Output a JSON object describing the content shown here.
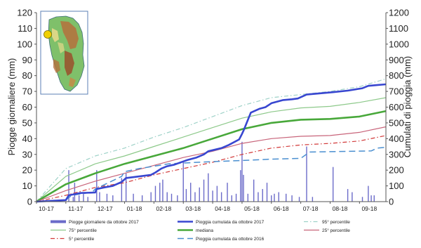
{
  "chart_data": {
    "type": "line",
    "ylabel_left": "Piogge giornaliere (mm)",
    "ylabel_right": "Cumulati di pioggia (mm)",
    "ylim_left": [
      0,
      120
    ],
    "ylim_right": [
      0,
      1200
    ],
    "y_ticks_left": [
      "0",
      "10",
      "20",
      "30",
      "40",
      "50",
      "60",
      "70",
      "80",
      "90",
      "100",
      "110",
      "120"
    ],
    "y_ticks_right": [
      "0",
      "100",
      "200",
      "300",
      "400",
      "500",
      "600",
      "700",
      "800",
      "900",
      "1000",
      "1100",
      "1200"
    ],
    "x_ticks": [
      "10-17",
      "11-17",
      "12-17",
      "01-18",
      "02-18",
      "03-18",
      "04-18",
      "05-18",
      "06-18",
      "07-18",
      "08-18",
      "09-18"
    ],
    "x_months": [
      0,
      1,
      2,
      3,
      4,
      5,
      6,
      7,
      8,
      9,
      10,
      11
    ],
    "xlim": [
      0,
      11.9
    ],
    "grid": false,
    "legend_position": "bottom",
    "daily_bars": {
      "name": "Piogge giornaliere da ottobre 2017",
      "color": "#6b6bc9",
      "axis": "left",
      "points": [
        [
          1.1,
          20
        ],
        [
          1.25,
          3
        ],
        [
          1.3,
          12
        ],
        [
          1.45,
          4
        ],
        [
          1.6,
          5
        ],
        [
          1.75,
          3
        ],
        [
          2.05,
          20
        ],
        [
          2.15,
          6
        ],
        [
          2.4,
          5
        ],
        [
          2.6,
          4
        ],
        [
          2.9,
          15
        ],
        [
          3.05,
          18
        ],
        [
          3.3,
          5
        ],
        [
          3.6,
          4
        ],
        [
          3.9,
          6
        ],
        [
          4.05,
          10
        ],
        [
          4.2,
          12
        ],
        [
          4.3,
          14
        ],
        [
          4.45,
          6
        ],
        [
          4.6,
          5
        ],
        [
          4.8,
          4
        ],
        [
          5.0,
          25
        ],
        [
          5.1,
          8
        ],
        [
          5.25,
          12
        ],
        [
          5.4,
          6
        ],
        [
          5.55,
          9
        ],
        [
          5.7,
          14
        ],
        [
          5.85,
          18
        ],
        [
          6.0,
          7
        ],
        [
          6.15,
          10
        ],
        [
          6.3,
          6
        ],
        [
          6.5,
          12
        ],
        [
          6.65,
          4
        ],
        [
          6.8,
          5
        ],
        [
          6.95,
          20
        ],
        [
          7.0,
          38
        ],
        [
          7.05,
          17
        ],
        [
          7.2,
          5
        ],
        [
          7.4,
          14
        ],
        [
          7.55,
          6
        ],
        [
          7.7,
          8
        ],
        [
          7.85,
          12
        ],
        [
          8.0,
          4
        ],
        [
          8.1,
          5
        ],
        [
          8.25,
          6
        ],
        [
          8.5,
          5
        ],
        [
          8.7,
          4
        ],
        [
          8.95,
          3
        ],
        [
          9.2,
          35
        ],
        [
          9.4,
          3
        ],
        [
          10.1,
          22
        ],
        [
          10.6,
          8
        ],
        [
          10.75,
          6
        ],
        [
          11.1,
          3
        ],
        [
          11.3,
          10
        ],
        [
          11.4,
          4
        ],
        [
          11.5,
          4
        ]
      ]
    },
    "series": [
      {
        "name": "Pioggia cumulata da ottobre 2017",
        "color": "#3847d0",
        "width": 2.6,
        "dash": "",
        "axis": "right",
        "points": [
          [
            0,
            0
          ],
          [
            1.0,
            10
          ],
          [
            1.1,
            40
          ],
          [
            1.5,
            55
          ],
          [
            2.0,
            58
          ],
          [
            2.05,
            80
          ],
          [
            2.3,
            90
          ],
          [
            2.6,
            100
          ],
          [
            2.9,
            125
          ],
          [
            3.05,
            150
          ],
          [
            3.5,
            160
          ],
          [
            3.9,
            170
          ],
          [
            4.05,
            185
          ],
          [
            4.25,
            210
          ],
          [
            4.45,
            225
          ],
          [
            4.7,
            235
          ],
          [
            5.0,
            255
          ],
          [
            5.15,
            265
          ],
          [
            5.45,
            280
          ],
          [
            5.7,
            300
          ],
          [
            5.85,
            320
          ],
          [
            6.3,
            340
          ],
          [
            6.55,
            360
          ],
          [
            6.9,
            395
          ],
          [
            7.0,
            430
          ],
          [
            7.05,
            450
          ],
          [
            7.3,
            565
          ],
          [
            7.6,
            590
          ],
          [
            7.8,
            600
          ],
          [
            8.0,
            625
          ],
          [
            8.4,
            645
          ],
          [
            8.7,
            650
          ],
          [
            8.9,
            655
          ],
          [
            9.2,
            680
          ],
          [
            9.5,
            685
          ],
          [
            10.1,
            695
          ],
          [
            10.6,
            705
          ],
          [
            11.1,
            720
          ],
          [
            11.3,
            735
          ],
          [
            11.6,
            740
          ],
          [
            11.9,
            745
          ]
        ]
      },
      {
        "name": "95° percentile",
        "color": "#9ed2c8",
        "width": 1.2,
        "dash": "6,3,1.5,3",
        "axis": "right",
        "points": [
          [
            0,
            0
          ],
          [
            1,
            210
          ],
          [
            2,
            290
          ],
          [
            3,
            340
          ],
          [
            4,
            410
          ],
          [
            5,
            470
          ],
          [
            6,
            540
          ],
          [
            7,
            610
          ],
          [
            8,
            660
          ],
          [
            9,
            680
          ],
          [
            10,
            700
          ],
          [
            11,
            730
          ],
          [
            11.9,
            780
          ]
        ]
      },
      {
        "name": "75° percentile",
        "color": "#8dc98a",
        "width": 1.2,
        "dash": "",
        "axis": "right",
        "points": [
          [
            0,
            0
          ],
          [
            1,
            160
          ],
          [
            2,
            240
          ],
          [
            3,
            290
          ],
          [
            4,
            350
          ],
          [
            5,
            410
          ],
          [
            6,
            470
          ],
          [
            7,
            530
          ],
          [
            8,
            570
          ],
          [
            9,
            595
          ],
          [
            10,
            605
          ],
          [
            11,
            630
          ],
          [
            11.9,
            660
          ]
        ]
      },
      {
        "name": "mediana",
        "color": "#48a83a",
        "width": 2.6,
        "dash": "",
        "axis": "right",
        "points": [
          [
            0,
            0
          ],
          [
            1,
            110
          ],
          [
            2,
            180
          ],
          [
            3,
            240
          ],
          [
            4,
            290
          ],
          [
            5,
            340
          ],
          [
            6,
            400
          ],
          [
            7,
            460
          ],
          [
            8,
            500
          ],
          [
            9,
            520
          ],
          [
            10,
            525
          ],
          [
            11,
            540
          ],
          [
            11.9,
            575
          ]
        ]
      },
      {
        "name": "25° percentile",
        "color": "#c8647a",
        "width": 1.2,
        "dash": "",
        "axis": "right",
        "points": [
          [
            0,
            0
          ],
          [
            1,
            70
          ],
          [
            2,
            130
          ],
          [
            3,
            180
          ],
          [
            4,
            230
          ],
          [
            5,
            280
          ],
          [
            6,
            320
          ],
          [
            7,
            370
          ],
          [
            8,
            400
          ],
          [
            9,
            415
          ],
          [
            10,
            420
          ],
          [
            11,
            440
          ],
          [
            11.9,
            475
          ]
        ]
      },
      {
        "name": "5° percentile",
        "color": "#d23a3a",
        "width": 1.2,
        "dash": "6,3,1.5,3",
        "axis": "right",
        "points": [
          [
            0,
            0
          ],
          [
            1,
            40
          ],
          [
            2,
            90
          ],
          [
            3,
            120
          ],
          [
            4,
            170
          ],
          [
            5,
            210
          ],
          [
            6,
            250
          ],
          [
            7,
            300
          ],
          [
            8,
            340
          ],
          [
            9,
            360
          ],
          [
            10,
            370
          ],
          [
            11,
            385
          ],
          [
            11.9,
            420
          ]
        ]
      },
      {
        "name": "Pioggia cumulata da ottobre 2016",
        "color": "#4a8fd0",
        "width": 1.5,
        "dash": "9,5",
        "axis": "right",
        "points": [
          [
            0,
            0
          ],
          [
            1,
            10
          ],
          [
            1.2,
            40
          ],
          [
            1.9,
            60
          ],
          [
            2.0,
            80
          ],
          [
            2.9,
            160
          ],
          [
            3.0,
            190
          ],
          [
            3.5,
            210
          ],
          [
            4.0,
            225
          ],
          [
            4.5,
            240
          ],
          [
            5.5,
            250
          ],
          [
            6.5,
            258
          ],
          [
            7.1,
            262
          ],
          [
            8.0,
            270
          ],
          [
            9.0,
            275
          ],
          [
            9.3,
            315
          ],
          [
            10.2,
            318
          ],
          [
            11.4,
            322
          ],
          [
            11.6,
            340
          ],
          [
            11.9,
            345
          ]
        ]
      }
    ],
    "legend_layout": [
      [
        "Piogge giornaliere da ottobre 2017",
        "Pioggia cumulata da ottobre 2017",
        "95° percentile"
      ],
      [
        "75° percentile",
        "mediana",
        "25° percentile"
      ],
      [
        "5° percentile",
        "Pioggia cumulata da ottobre 2016"
      ]
    ]
  },
  "inset_map": {
    "icon": "sardinia-relief-map-icon",
    "marker_color": "#f0d000",
    "frame_color": "#5b7fb5"
  }
}
